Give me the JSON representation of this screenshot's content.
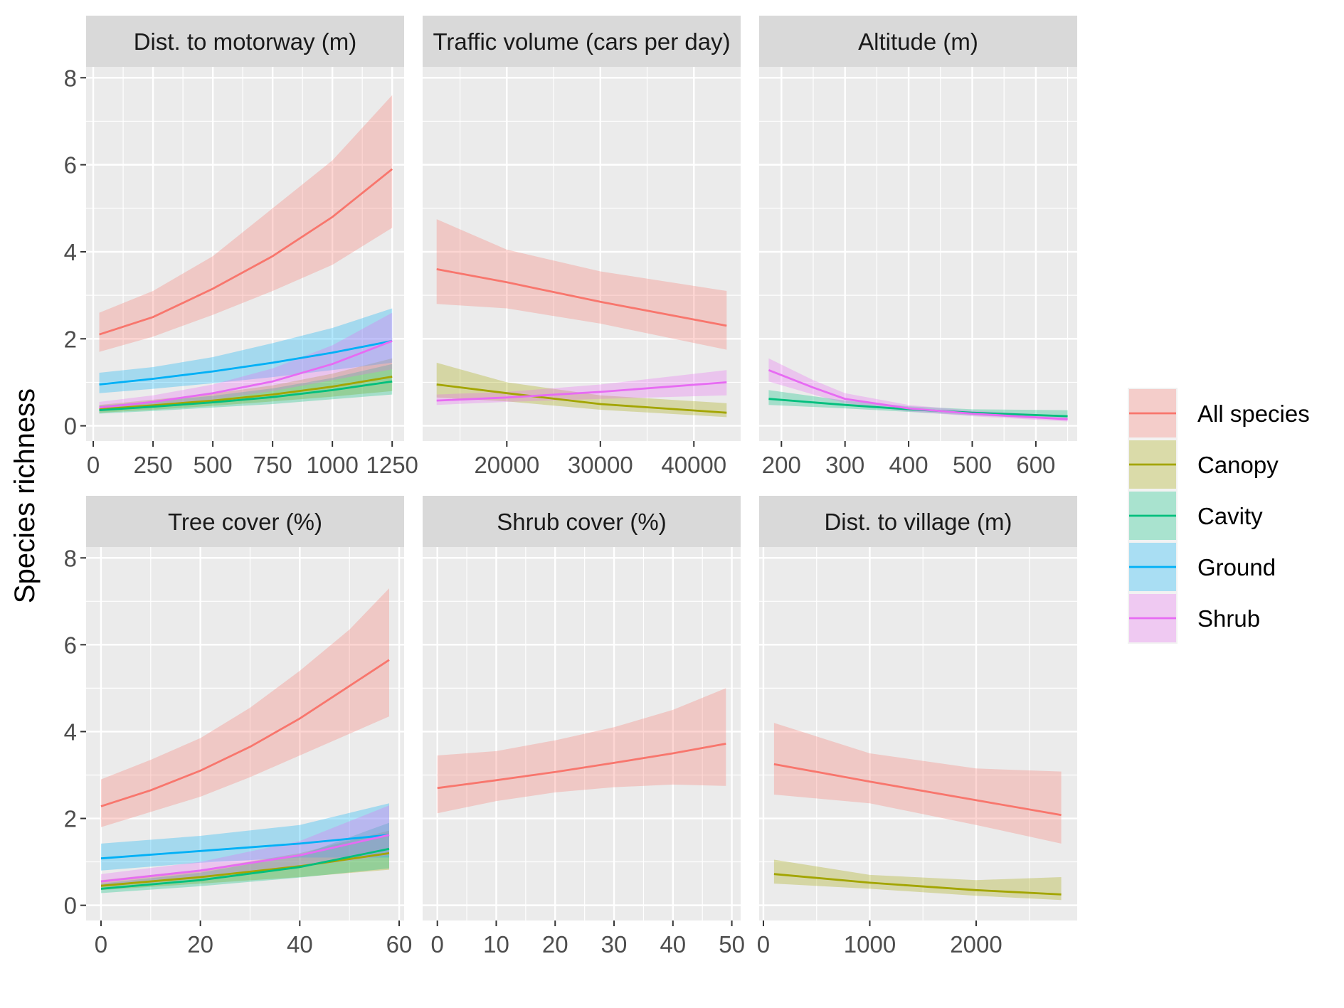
{
  "chart_data": {
    "type": "line",
    "ylabel": "Species richness",
    "ylim": [
      0,
      8
    ],
    "yticks": [
      0,
      2,
      4,
      6,
      8
    ],
    "legend": {
      "placement": "right",
      "entries": [
        {
          "name": "All species",
          "color": "#F8766D"
        },
        {
          "name": "Canopy",
          "color": "#A3A500"
        },
        {
          "name": "Cavity",
          "color": "#00BF7D"
        },
        {
          "name": "Ground",
          "color": "#00B0F6"
        },
        {
          "name": "Shrub",
          "color": "#E76BF3"
        }
      ]
    },
    "panels": [
      {
        "title": "Dist. to motorway (m)",
        "xlim": [
          -30,
          1300
        ],
        "xticks": [
          0,
          250,
          500,
          750,
          1000,
          1250
        ],
        "xtick_labels": [
          "0",
          "250",
          "500",
          "750",
          "1000",
          "1250"
        ],
        "series": [
          {
            "name": "All species",
            "x": [
              25,
              250,
              500,
              750,
              1000,
              1250
            ],
            "y": [
              2.1,
              2.5,
              3.15,
              3.9,
              4.8,
              5.9
            ],
            "lower": [
              1.7,
              2.05,
              2.55,
              3.1,
              3.7,
              4.55
            ],
            "upper": [
              2.6,
              3.1,
              3.9,
              5.0,
              6.1,
              7.6
            ]
          },
          {
            "name": "Canopy",
            "x": [
              25,
              250,
              500,
              750,
              1000,
              1250
            ],
            "y": [
              0.38,
              0.47,
              0.58,
              0.72,
              0.9,
              1.13
            ],
            "lower": [
              0.3,
              0.37,
              0.46,
              0.56,
              0.67,
              0.8
            ],
            "upper": [
              0.48,
              0.6,
              0.74,
              0.93,
              1.2,
              1.55
            ]
          },
          {
            "name": "Cavity",
            "x": [
              25,
              250,
              500,
              750,
              1000,
              1250
            ],
            "y": [
              0.36,
              0.44,
              0.54,
              0.66,
              0.82,
              1.02
            ],
            "lower": [
              0.28,
              0.34,
              0.42,
              0.5,
              0.61,
              0.72
            ],
            "upper": [
              0.46,
              0.56,
              0.69,
              0.86,
              1.1,
              1.42
            ]
          },
          {
            "name": "Ground",
            "x": [
              25,
              250,
              500,
              750,
              1000,
              1250
            ],
            "y": [
              0.95,
              1.08,
              1.25,
              1.45,
              1.68,
              1.95
            ],
            "lower": [
              0.75,
              0.85,
              0.98,
              1.12,
              1.28,
              1.45
            ],
            "upper": [
              1.22,
              1.35,
              1.58,
              1.9,
              2.25,
              2.7
            ]
          },
          {
            "name": "Shrub",
            "x": [
              25,
              250,
              500,
              750,
              1000,
              1250
            ],
            "y": [
              0.42,
              0.55,
              0.75,
              1.02,
              1.42,
              1.95
            ],
            "lower": [
              0.33,
              0.44,
              0.6,
              0.8,
              1.05,
              1.3
            ],
            "upper": [
              0.55,
              0.7,
              0.95,
              1.32,
              1.85,
              2.6
            ]
          }
        ]
      },
      {
        "title": "Traffic volume (cars per day)",
        "xlim": [
          11000,
          45000
        ],
        "xticks": [
          20000,
          30000,
          40000
        ],
        "xtick_labels": [
          "20000",
          "30000",
          "40000"
        ],
        "series": [
          {
            "name": "All species",
            "x": [
              12500,
              20000,
              30000,
              43500
            ],
            "y": [
              3.6,
              3.3,
              2.85,
              2.3
            ],
            "lower": [
              2.8,
              2.7,
              2.35,
              1.75
            ],
            "upper": [
              4.75,
              4.05,
              3.55,
              3.1
            ]
          },
          {
            "name": "Canopy",
            "x": [
              12500,
              20000,
              30000,
              43500
            ],
            "y": [
              0.95,
              0.75,
              0.5,
              0.3
            ],
            "lower": [
              0.65,
              0.56,
              0.37,
              0.2
            ],
            "upper": [
              1.45,
              1.0,
              0.7,
              0.52
            ]
          },
          {
            "name": "Shrub",
            "x": [
              12500,
              20000,
              30000,
              43500
            ],
            "y": [
              0.58,
              0.65,
              0.78,
              1.0
            ],
            "lower": [
              0.48,
              0.55,
              0.62,
              0.7
            ],
            "upper": [
              0.72,
              0.78,
              0.95,
              1.28
            ]
          }
        ]
      },
      {
        "title": "Altitude (m)",
        "xlim": [
          165,
          665
        ],
        "xticks": [
          200,
          300,
          400,
          500,
          600
        ],
        "xtick_labels": [
          "200",
          "300",
          "400",
          "500",
          "600"
        ],
        "series": [
          {
            "name": "Cavity",
            "x": [
              180,
              300,
              400,
              500,
              650
            ],
            "y": [
              0.62,
              0.48,
              0.38,
              0.3,
              0.22
            ],
            "lower": [
              0.48,
              0.4,
              0.32,
              0.24,
              0.14
            ],
            "upper": [
              0.82,
              0.58,
              0.45,
              0.38,
              0.36
            ]
          },
          {
            "name": "Shrub",
            "x": [
              180,
              250,
              300,
              400,
              500,
              650
            ],
            "y": [
              1.28,
              0.88,
              0.62,
              0.4,
              0.28,
              0.15
            ],
            "lower": [
              1.02,
              0.72,
              0.52,
              0.33,
              0.22,
              0.1
            ],
            "upper": [
              1.55,
              1.05,
              0.75,
              0.48,
              0.35,
              0.23
            ]
          }
        ]
      },
      {
        "title": "Tree cover (%)",
        "xlim": [
          -3,
          61
        ],
        "xticks": [
          0,
          20,
          40,
          60
        ],
        "xtick_labels": [
          "0",
          "20",
          "40",
          "60"
        ],
        "series": [
          {
            "name": "All species",
            "x": [
              0,
              10,
              20,
              30,
              40,
              50,
              58
            ],
            "y": [
              2.28,
              2.65,
              3.1,
              3.65,
              4.3,
              5.05,
              5.65
            ],
            "lower": [
              1.8,
              2.15,
              2.5,
              2.95,
              3.45,
              3.95,
              4.35
            ],
            "upper": [
              2.9,
              3.35,
              3.85,
              4.55,
              5.4,
              6.35,
              7.3
            ]
          },
          {
            "name": "Canopy",
            "x": [
              0,
              20,
              40,
              58
            ],
            "y": [
              0.45,
              0.65,
              0.9,
              1.2
            ],
            "lower": [
              0.35,
              0.5,
              0.65,
              0.82
            ],
            "upper": [
              0.58,
              0.82,
              1.2,
              1.72
            ]
          },
          {
            "name": "Cavity",
            "x": [
              0,
              20,
              40,
              58
            ],
            "y": [
              0.38,
              0.58,
              0.88,
              1.3
            ],
            "lower": [
              0.28,
              0.44,
              0.64,
              0.85
            ],
            "upper": [
              0.5,
              0.75,
              1.15,
              1.9
            ]
          },
          {
            "name": "Ground",
            "x": [
              0,
              20,
              40,
              58
            ],
            "y": [
              1.08,
              1.25,
              1.42,
              1.62
            ],
            "lower": [
              0.8,
              0.98,
              1.1,
              1.1
            ],
            "upper": [
              1.42,
              1.6,
              1.85,
              2.35
            ]
          },
          {
            "name": "Shrub",
            "x": [
              0,
              20,
              40,
              58
            ],
            "y": [
              0.55,
              0.8,
              1.15,
              1.62
            ],
            "lower": [
              0.42,
              0.62,
              0.88,
              1.15
            ],
            "upper": [
              0.72,
              1.0,
              1.48,
              2.3
            ]
          }
        ]
      },
      {
        "title": "Shrub cover (%)",
        "xlim": [
          -2.5,
          51.5
        ],
        "xticks": [
          0,
          10,
          20,
          30,
          40,
          50
        ],
        "xtick_labels": [
          "0",
          "10",
          "20",
          "30",
          "40",
          "50"
        ],
        "series": [
          {
            "name": "All species",
            "x": [
              0,
              10,
              20,
              30,
              40,
              49
            ],
            "y": [
              2.7,
              2.88,
              3.07,
              3.28,
              3.5,
              3.72
            ],
            "lower": [
              2.12,
              2.4,
              2.6,
              2.72,
              2.78,
              2.75
            ],
            "upper": [
              3.45,
              3.55,
              3.8,
              4.1,
              4.5,
              5.0
            ]
          }
        ]
      },
      {
        "title": "Dist. to village (m)",
        "xlim": [
          -40,
          2950
        ],
        "xticks": [
          0,
          1000,
          2000
        ],
        "xtick_labels": [
          "0",
          "1000",
          "2000"
        ],
        "series": [
          {
            "name": "All species",
            "x": [
              100,
              1000,
              2000,
              2800
            ],
            "y": [
              3.25,
              2.85,
              2.42,
              2.08
            ],
            "lower": [
              2.55,
              2.35,
              1.85,
              1.42
            ],
            "upper": [
              4.2,
              3.5,
              3.15,
              3.08
            ]
          },
          {
            "name": "Canopy",
            "x": [
              100,
              1000,
              2000,
              2800
            ],
            "y": [
              0.72,
              0.52,
              0.35,
              0.25
            ],
            "lower": [
              0.5,
              0.38,
              0.22,
              0.12
            ],
            "upper": [
              1.05,
              0.7,
              0.58,
              0.65
            ]
          }
        ]
      }
    ]
  }
}
